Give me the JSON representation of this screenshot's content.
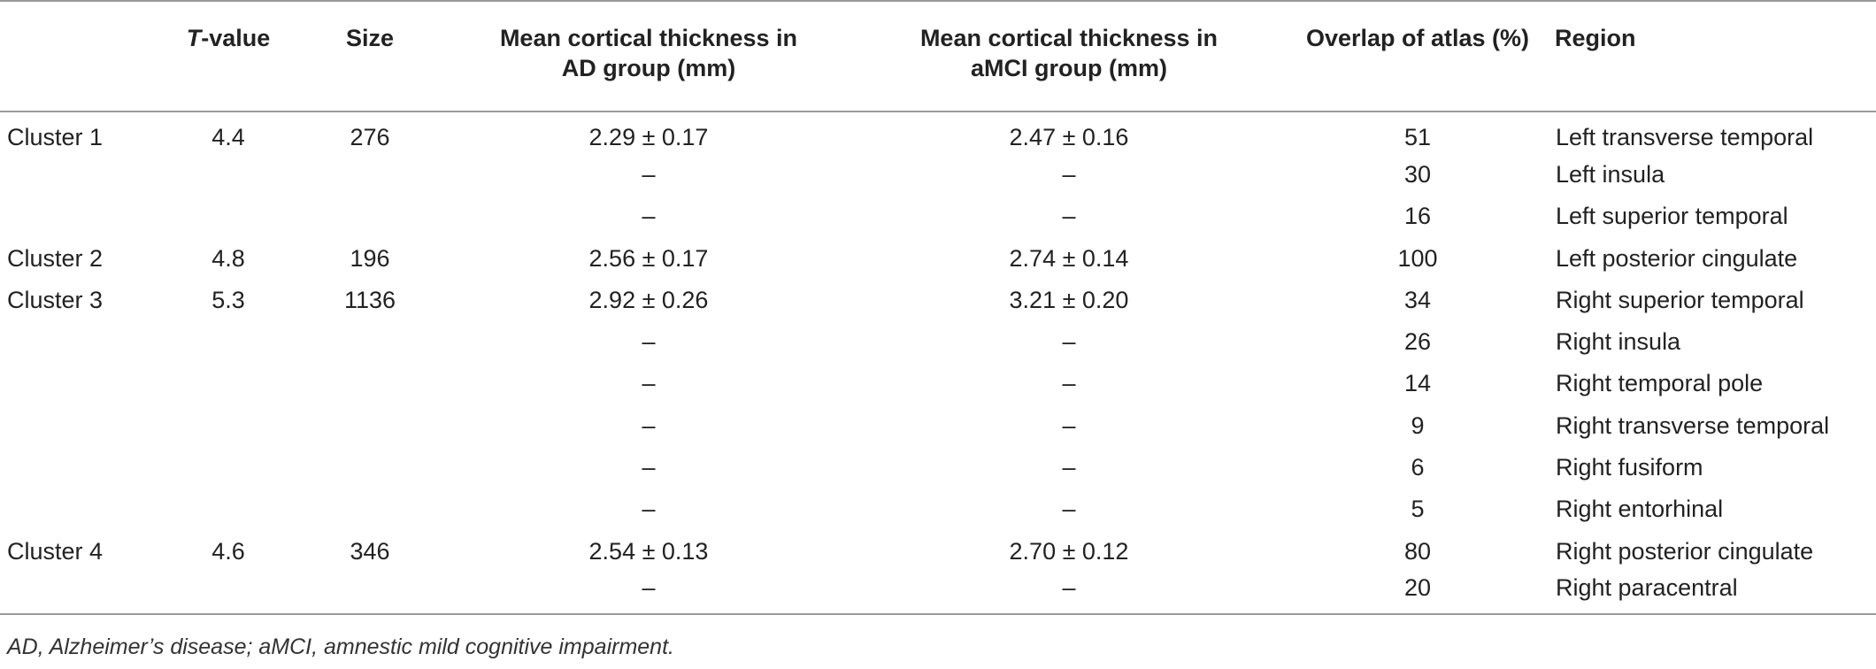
{
  "table": {
    "headers": {
      "label": "",
      "t_value_prefix": "T",
      "t_value_suffix": "-value",
      "size": "Size",
      "ad_line1": "Mean cortical thickness in",
      "ad_line2": "AD group (mm)",
      "amci_line1": "Mean cortical thickness in",
      "amci_line2": "aMCI group (mm)",
      "overlap": "Overlap of atlas (%)",
      "region": "Region"
    },
    "rows": [
      {
        "cluster": "Cluster 1",
        "t": "4.4",
        "size": "276",
        "ad": "2.29 ± 0.17",
        "amci": "2.47 ± 0.16",
        "overlap": "51",
        "region": "Left transverse temporal"
      },
      {
        "cluster": "",
        "t": "",
        "size": "",
        "ad": "–",
        "amci": "–",
        "overlap": "30",
        "region": "Left insula"
      },
      {
        "cluster": "",
        "t": "",
        "size": "",
        "ad": "–",
        "amci": "–",
        "overlap": "16",
        "region": "Left superior temporal"
      },
      {
        "cluster": "Cluster 2",
        "t": "4.8",
        "size": "196",
        "ad": "2.56 ± 0.17",
        "amci": "2.74 ± 0.14",
        "overlap": "100",
        "region": "Left posterior cingulate"
      },
      {
        "cluster": "Cluster 3",
        "t": "5.3",
        "size": "1136",
        "ad": "2.92 ± 0.26",
        "amci": "3.21 ± 0.20",
        "overlap": "34",
        "region": "Right superior temporal"
      },
      {
        "cluster": "",
        "t": "",
        "size": "",
        "ad": "–",
        "amci": "–",
        "overlap": "26",
        "region": "Right insula"
      },
      {
        "cluster": "",
        "t": "",
        "size": "",
        "ad": "–",
        "amci": "–",
        "overlap": "14",
        "region": "Right temporal pole"
      },
      {
        "cluster": "",
        "t": "",
        "size": "",
        "ad": "–",
        "amci": "–",
        "overlap": "9",
        "region": "Right transverse temporal"
      },
      {
        "cluster": "",
        "t": "",
        "size": "",
        "ad": "–",
        "amci": "–",
        "overlap": "6",
        "region": "Right fusiform"
      },
      {
        "cluster": "",
        "t": "",
        "size": "",
        "ad": "–",
        "amci": "–",
        "overlap": "5",
        "region": "Right entorhinal"
      },
      {
        "cluster": "Cluster 4",
        "t": "4.6",
        "size": "346",
        "ad": "2.54 ± 0.13",
        "amci": "2.70 ± 0.12",
        "overlap": "80",
        "region": "Right posterior cingulate"
      },
      {
        "cluster": "",
        "t": "",
        "size": "",
        "ad": "–",
        "amci": "–",
        "overlap": "20",
        "region": "Right paracentral"
      }
    ]
  },
  "footnote": "AD, Alzheimer’s disease; aMCI, amnestic mild cognitive impairment."
}
